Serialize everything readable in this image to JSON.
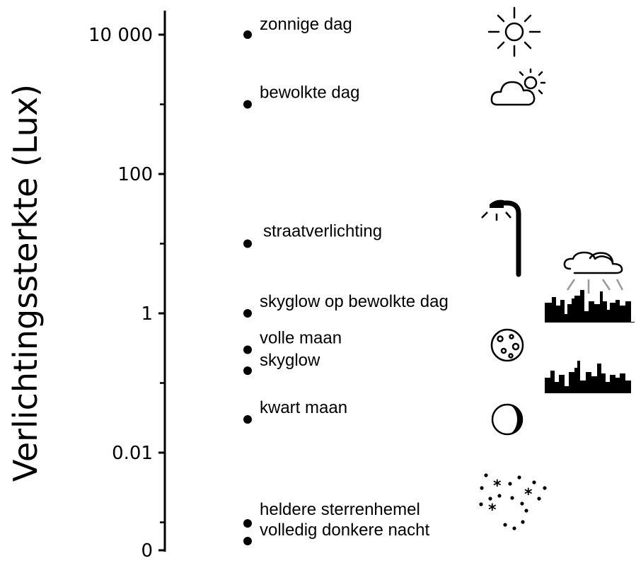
{
  "chart_data": {
    "type": "scatter",
    "ylabel": "Verlichtingssterkte (Lux)",
    "yscale": "log",
    "ylim": [
      0.0001,
      30000
    ],
    "grid": false,
    "legend": "none",
    "y_ticks": [
      {
        "value": 10000,
        "label": "10 000"
      },
      {
        "value": 100,
        "label": "100"
      },
      {
        "value": 1,
        "label": "1"
      },
      {
        "value": 0.01,
        "label": "0.01"
      },
      {
        "value": 0.0001,
        "label": "0"
      }
    ],
    "minor_ticks": [
      1000,
      10,
      0.1,
      0.001
    ],
    "points": [
      {
        "label": "zonnige dag",
        "y": 10000,
        "icon": "sun-icon"
      },
      {
        "label": "bewolkte dag",
        "y": 1000,
        "icon": "cloudy-sun-icon"
      },
      {
        "label": "straatverlichting",
        "y": 10,
        "icon": "street-lamp-icon"
      },
      {
        "label": "skyglow op bewolkte dag",
        "y": 1,
        "icon": "city-skyglow-cloud-icon"
      },
      {
        "label": "volle maan",
        "y": 0.3,
        "icon": "full-moon-icon"
      },
      {
        "label": "skyglow",
        "y": 0.15,
        "icon": "city-skyline-icon"
      },
      {
        "label": "kwart maan",
        "y": 0.03,
        "icon": "quarter-moon-icon"
      },
      {
        "label": "heldere sterrenhemel",
        "y": 0.00045,
        "icon": "starry-sky-icon"
      },
      {
        "label": "volledig donkere nacht",
        "y": 0.00025,
        "icon": ""
      }
    ],
    "colors": {
      "marks": "#000000",
      "background": "#ffffff",
      "skyglow": "#999999"
    }
  }
}
